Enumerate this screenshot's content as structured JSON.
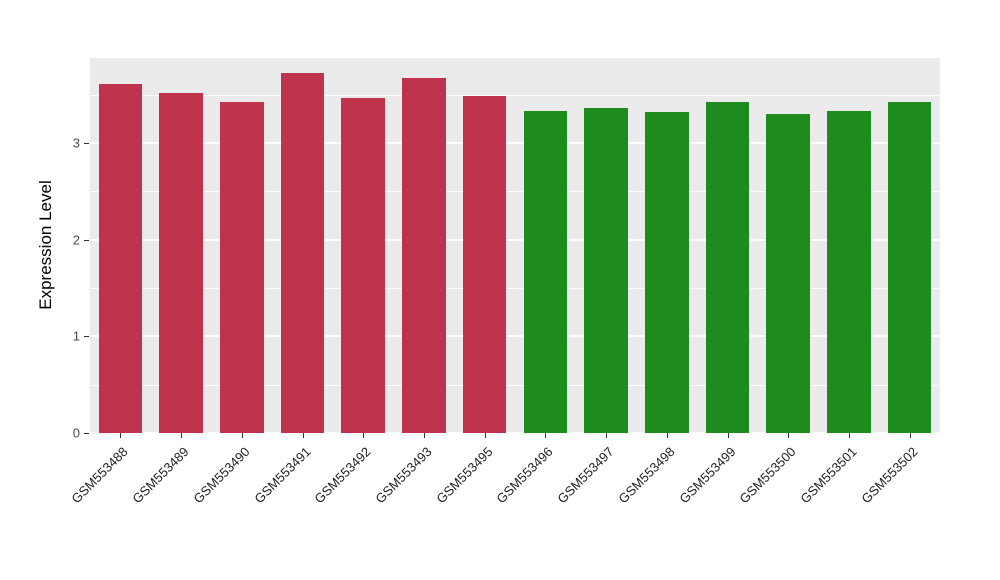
{
  "chart_data": {
    "type": "bar",
    "title": "",
    "xlabel": "",
    "ylabel": "Expression Level",
    "ylim": [
      0,
      3.88
    ],
    "yticks": [
      0,
      1,
      2,
      3
    ],
    "minor_gridlines": [
      0.5,
      1.5,
      2.5,
      3.5
    ],
    "grid": true,
    "legend_position": "none",
    "panel_background": "#EBEBEB",
    "gridline_color": "#FFFFFF",
    "categories": [
      "GSM553488",
      "GSM553489",
      "GSM553490",
      "GSM553491",
      "GSM553492",
      "GSM553493",
      "GSM553495",
      "GSM553496",
      "GSM553497",
      "GSM553498",
      "GSM553499",
      "GSM553500",
      "GSM553501",
      "GSM553502"
    ],
    "values": [
      3.61,
      3.52,
      3.42,
      3.72,
      3.47,
      3.67,
      3.49,
      3.33,
      3.36,
      3.32,
      3.43,
      3.3,
      3.33,
      3.43
    ],
    "groups": [
      "red",
      "red",
      "red",
      "red",
      "red",
      "red",
      "red",
      "green",
      "green",
      "green",
      "green",
      "green",
      "green",
      "green"
    ],
    "group_colors": {
      "red": "#C0334D",
      "green": "#1E8B1E"
    }
  }
}
